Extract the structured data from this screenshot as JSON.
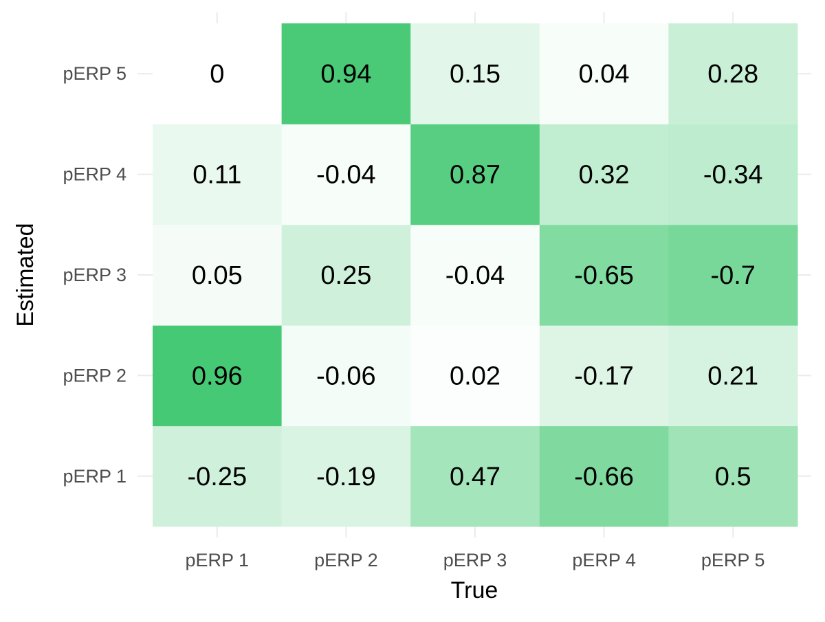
{
  "chart_data": {
    "type": "heatmap",
    "xlabel": "True",
    "ylabel": "Estimated",
    "x_categories": [
      "pERP 1",
      "pERP 2",
      "pERP 3",
      "pERP 4",
      "pERP 5"
    ],
    "y_categories": [
      "pERP 1",
      "pERP 2",
      "pERP 3",
      "pERP 4",
      "pERP 5"
    ],
    "values": [
      [
        -0.25,
        -0.19,
        0.47,
        -0.66,
        0.5
      ],
      [
        0.96,
        -0.06,
        0.02,
        -0.17,
        0.21
      ],
      [
        0.05,
        0.25,
        -0.04,
        -0.65,
        -0.7
      ],
      [
        0.11,
        -0.04,
        0.87,
        0.32,
        -0.34
      ],
      [
        0,
        0.94,
        0.15,
        0.04,
        0.28
      ]
    ],
    "value_labels": [
      [
        "-0.25",
        "-0.19",
        "0.47",
        "-0.66",
        "0.5"
      ],
      [
        "0.96",
        "-0.06",
        "0.02",
        "-0.17",
        "0.21"
      ],
      [
        "0.05",
        "0.25",
        "-0.04",
        "-0.65",
        "-0.7"
      ],
      [
        "0.11",
        "-0.04",
        "0.87",
        "0.32",
        "-0.34"
      ],
      [
        "0",
        "0.94",
        "0.15",
        "0.04",
        "0.28"
      ]
    ],
    "color_scale": {
      "low": "#ffffff",
      "high": "#3ec76e",
      "encoding": "absolute value",
      "domain": [
        0,
        1
      ]
    },
    "grid": true,
    "legend": "none"
  }
}
